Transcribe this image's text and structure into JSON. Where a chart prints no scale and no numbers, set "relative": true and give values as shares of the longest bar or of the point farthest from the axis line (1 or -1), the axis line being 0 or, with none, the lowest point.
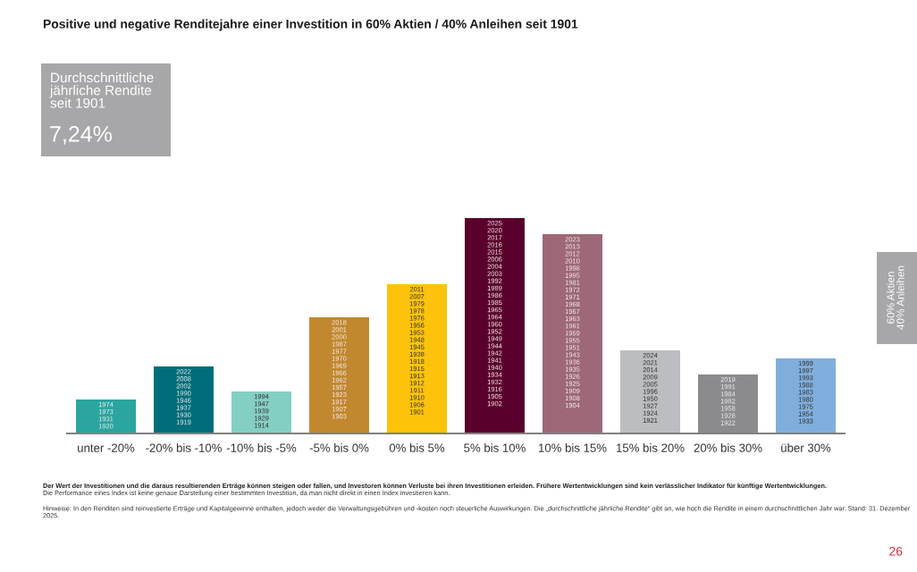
{
  "chart_data": {
    "type": "bar",
    "title": "Positive und negative Renditejahre einer Investition in 60% Aktien / 40% Anleihen seit 1901",
    "categories": [
      "unter -20%",
      "-20% bis -10%",
      "-10% bis -5%",
      "-5% bis 0%",
      "0% bis 5%",
      "5% bis 10%",
      "10% bis 15%",
      "15% bis 20%",
      "20% bis 30%",
      "über 30%"
    ],
    "relative": true,
    "values": [
      0.158,
      0.311,
      0.195,
      0.539,
      0.693,
      1,
      0.925,
      0.386,
      0.274,
      0.349
    ],
    "colors": [
      "#2aa59f",
      "#006e7a",
      "#84cfc3",
      "#c2882f",
      "#fcc30a",
      "#5a002c",
      "#9e6878",
      "#bcbdc0",
      "#8b8b8d",
      "#80aedc"
    ],
    "grid": false,
    "legend": false,
    "annotations": [
      "Durchschnittliche\njährliche Rendite\nseit 1901",
      "7,24%",
      "60% Aktien\n40% Anleihen",
      "Der Wert der Investitionen und die daraus resultierenden Erträge können steigen oder fallen, und Investoren können Verluste bei ihren Investitionen erleiden. Frühere Wertentwicklungen sind kein verlässlicher Indikator für künftige Wertentwicklungen.",
      "Die Performance eines Index ist keine genaue Darstellung einer bestimmten Investition, da man nicht direkt in einen Index investieren kann.",
      "Hinweise: In den Renditen sind reinvestierte Erträge und Kapitalgewinne enthalten, jedoch weder die Verwaltungsgebühren und -kosten noch steuerliche Auswirkungen. Die „durchschnittliche jährliche Rendite“ gibt an, wie hoch die Rendite in einem durchschnittlichen Jahr war. Stand: 31. Dezember 2025.",
      "26",
      "1974\n1973\n1931\n1920",
      "2022\n2008\n2002\n1990\n1946\n1937\n1930\n1919",
      "1994\n1947\n1939\n1929\n1914",
      "2018\n2001\n2000\n1987\n1977\n1970\n1969\n1966\n1962\n1957\n1923\n1917\n1907\n1903",
      "2011\n2007\n1979\n1978\n1976\n1956\n1953\n1948\n1945\n1938\n1918\n1915\n1913\n1912\n1911\n1910\n1906\n1901",
      "2025\n2020\n2017\n2016\n2015\n2006\n2004\n2003\n1992\n1989\n1986\n1985\n1965\n1964\n1960\n1952\n1949\n1944\n1942\n1941\n1940\n1934\n1932\n1916\n1905\n1902",
      "2023\n2013\n2012\n2010\n1998\n1995\n1981\n1972\n1971\n1968\n1967\n1963\n1961\n1959\n1955\n1951\n1943\n1936\n1935\n1926\n1925\n1909\n1908\n1904",
      "2024\n2021\n2014\n2009\n2005\n1996\n1950\n1927\n1924\n1921",
      "2019\n1991\n1984\n1982\n1958\n1928\n1922",
      "1999\n1997\n1993\n1988\n1983\n1980\n1975\n1954\n1933"
    ]
  }
}
